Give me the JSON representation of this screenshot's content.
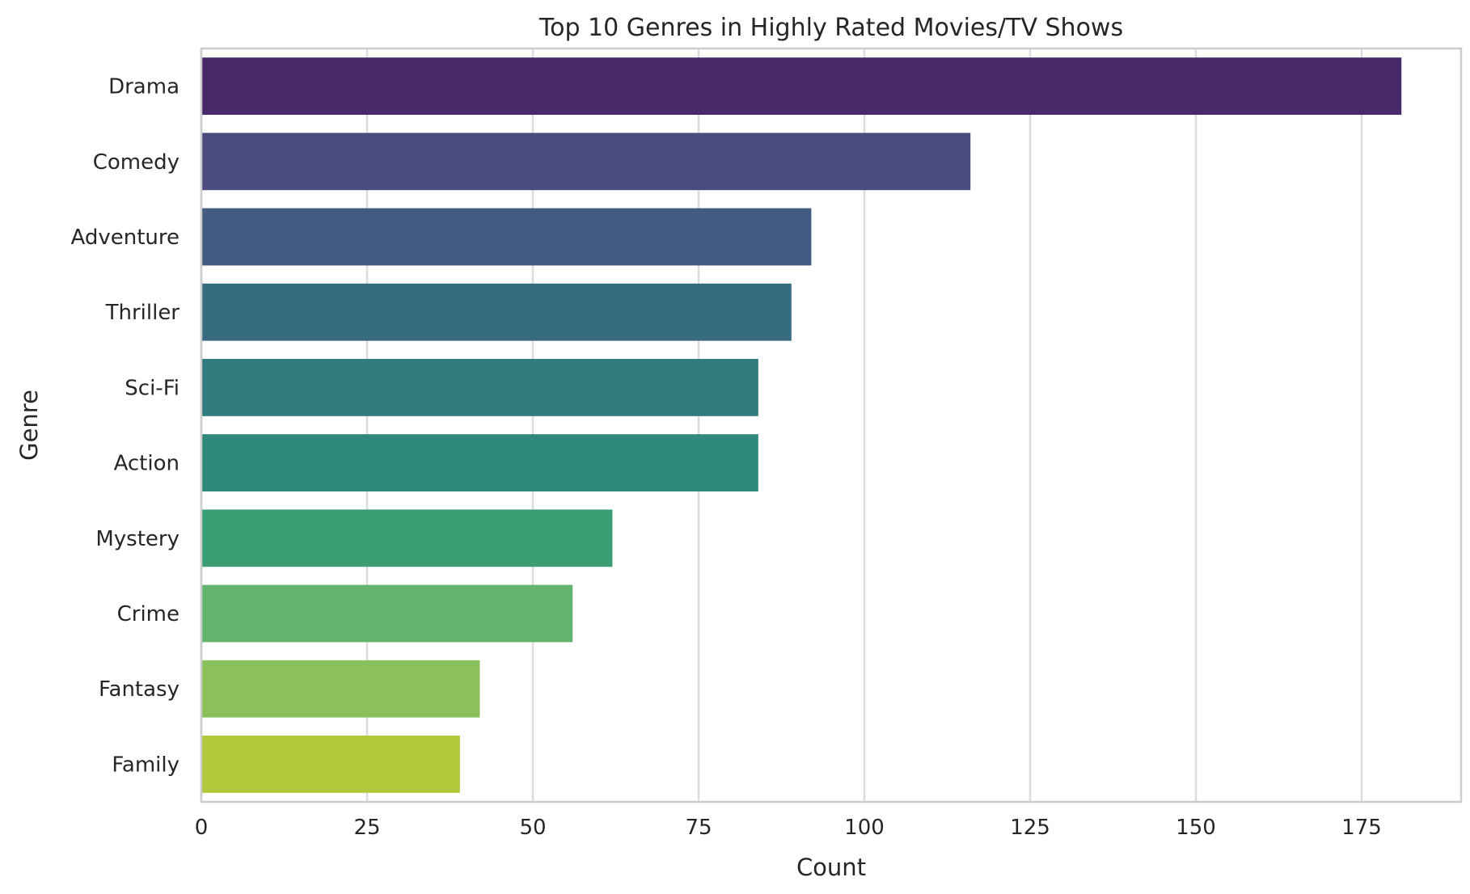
{
  "chart_data": {
    "type": "bar",
    "orientation": "horizontal",
    "title": "Top 10 Genres in Highly Rated Movies/TV Shows",
    "xlabel": "Count",
    "ylabel": "Genre",
    "categories": [
      "Drama",
      "Comedy",
      "Adventure",
      "Thriller",
      "Sci-Fi",
      "Action",
      "Mystery",
      "Crime",
      "Fantasy",
      "Family"
    ],
    "values": [
      181,
      116,
      92,
      89,
      84,
      84,
      62,
      56,
      42,
      39
    ],
    "colors": [
      "#482a6b",
      "#4a4a7d",
      "#415c80",
      "#376b80",
      "#317a7e",
      "#2f8a7c",
      "#3c9e74",
      "#63b56e",
      "#8bc15a",
      "#b3c73a"
    ],
    "xlim": [
      0,
      190
    ],
    "xticks": [
      0,
      25,
      50,
      75,
      100,
      125,
      150,
      175
    ],
    "grid": true
  }
}
